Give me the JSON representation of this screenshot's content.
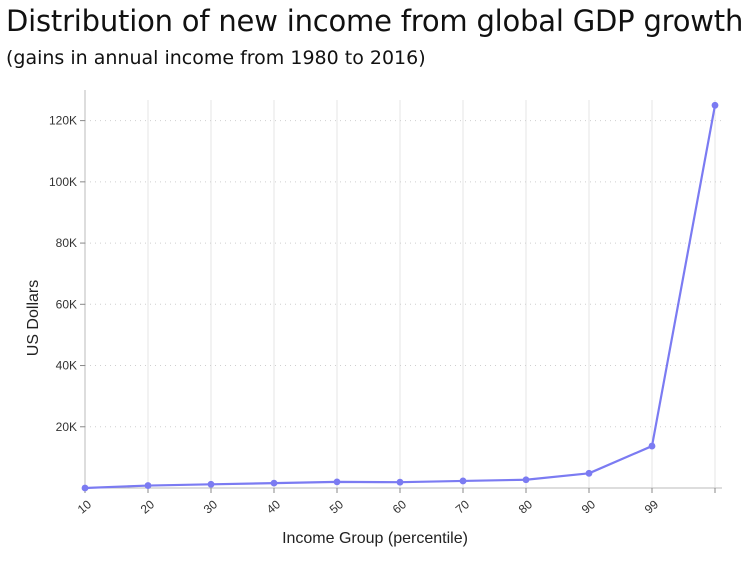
{
  "header": {
    "title": "Distribution of new income from global GDP growth",
    "subtitle": "(gains in annual income from 1980 to 2016)"
  },
  "colors": {
    "line": "#7b7bf2",
    "vgrid": "#e6e6e6",
    "hgrid": "#cfcfcf",
    "axis": "#bbbbbb"
  },
  "chart_data": {
    "type": "line",
    "title": "Distribution of new income from global GDP growth",
    "subtitle": "(gains in annual income from 1980 to 2016)",
    "xlabel": "Income Group (percentile)",
    "ylabel": "US Dollars",
    "categories": [
      "10",
      "20",
      "30",
      "40",
      "50",
      "60",
      "70",
      "80",
      "90",
      "99",
      ""
    ],
    "values": [
      0,
      800,
      1200,
      1600,
      2000,
      1900,
      2300,
      2700,
      4800,
      13700,
      125000
    ],
    "ylim": [
      0,
      130000
    ],
    "yticks": [
      20000,
      40000,
      60000,
      80000,
      100000,
      120000
    ],
    "ytick_labels": [
      "20K",
      "40K",
      "60K",
      "80K",
      "100K",
      "120K"
    ],
    "grid": "vertical solid, horizontal dotted",
    "legend": "none"
  }
}
